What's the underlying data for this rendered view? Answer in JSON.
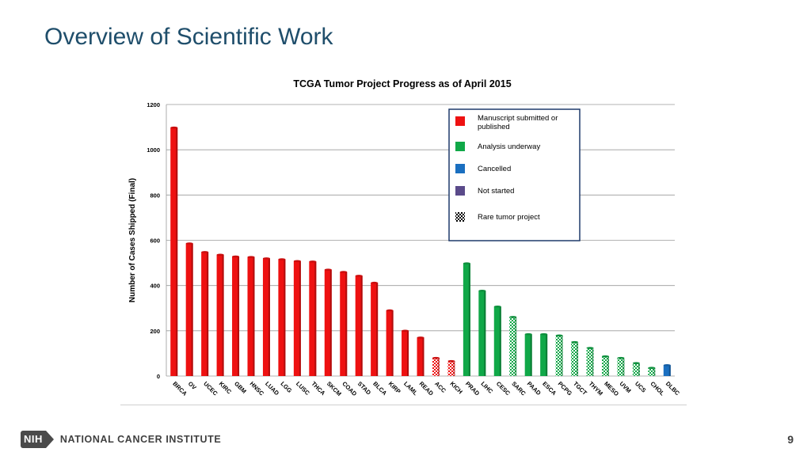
{
  "slide": {
    "title": "Overview of Scientific Work",
    "page_number": "9",
    "footer": {
      "logo_text": "NIH",
      "institute": "NATIONAL CANCER INSTITUTE"
    }
  },
  "colors": {
    "title": "#1f4e6b",
    "published": "#ee1111",
    "underway": "#10a848",
    "cancelled": "#1a6fc0",
    "not_started": "#5a4a8a"
  },
  "chart_data": {
    "type": "bar",
    "title": "TCGA Tumor Project Progress as of April 2015",
    "xlabel": "",
    "ylabel": "Number of Cases Shipped (Final)",
    "ylim": [
      0,
      1200
    ],
    "yticks": [
      0,
      200,
      400,
      600,
      800,
      1000,
      1200
    ],
    "grid": true,
    "legend_position": "top-right",
    "legend": [
      {
        "key": "published",
        "label": "Manuscript submitted or published",
        "pattern": "solid"
      },
      {
        "key": "underway",
        "label": "Analysis underway",
        "pattern": "solid"
      },
      {
        "key": "cancelled",
        "label": "Cancelled",
        "pattern": "solid"
      },
      {
        "key": "not_started",
        "label": "Not started",
        "pattern": "solid"
      },
      {
        "key": "rare",
        "label": "Rare tumor project",
        "pattern": "checker"
      }
    ],
    "categories": [
      "BRCA",
      "OV",
      "UCEC",
      "KIRC",
      "GBM",
      "HNSC",
      "LUAD",
      "LGG",
      "LUSC",
      "THCA",
      "SKCM",
      "COAD",
      "STAD",
      "BLCA",
      "KIRP",
      "LAML",
      "READ",
      "ACC",
      "KICH",
      "PRAD",
      "LIHC",
      "CESC",
      "SARC",
      "PAAD",
      "ESCA",
      "PCPG",
      "TGCT",
      "THYM",
      "MESO",
      "UVM",
      "UCS",
      "CHOL",
      "DLBC"
    ],
    "values": [
      1098,
      586,
      548,
      536,
      528,
      526,
      520,
      516,
      508,
      506,
      470,
      460,
      443,
      412,
      290,
      200,
      170,
      80,
      66,
      498,
      377,
      307,
      261,
      185,
      185,
      179,
      150,
      124,
      87,
      80,
      57,
      36,
      48
    ],
    "status": [
      "published",
      "published",
      "published",
      "published",
      "published",
      "published",
      "published",
      "published",
      "published",
      "published",
      "published",
      "published",
      "published",
      "published",
      "published",
      "published",
      "published",
      "published",
      "published",
      "underway",
      "underway",
      "underway",
      "underway",
      "underway",
      "underway",
      "underway",
      "underway",
      "underway",
      "underway",
      "underway",
      "underway",
      "underway",
      "cancelled"
    ],
    "rare": [
      false,
      false,
      false,
      false,
      false,
      false,
      false,
      false,
      false,
      false,
      false,
      false,
      false,
      false,
      false,
      false,
      false,
      true,
      true,
      false,
      false,
      false,
      true,
      false,
      false,
      true,
      true,
      true,
      true,
      true,
      true,
      true,
      false
    ]
  }
}
